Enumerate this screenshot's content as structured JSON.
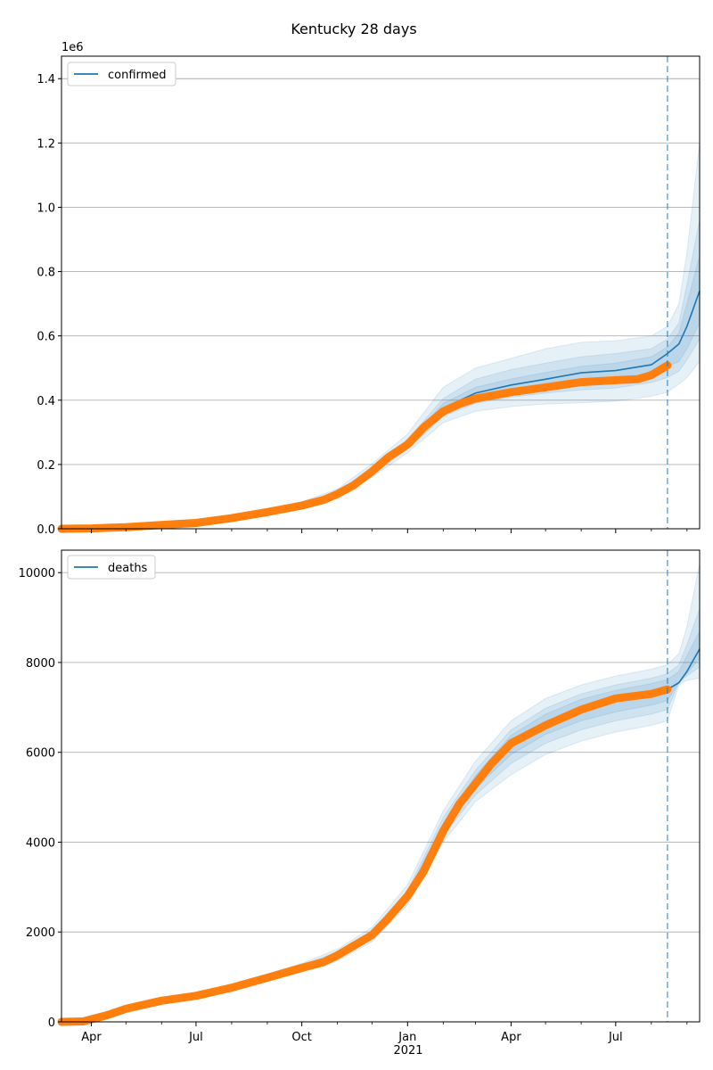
{
  "figure": {
    "title": "Kentucky 28 days",
    "x_ticks": [
      "Apr",
      "Jul",
      "Oct",
      "Jan",
      "Apr",
      "Jul"
    ],
    "x_year_label": "2021",
    "forecast_marker_date": "2021-08-15"
  },
  "colors": {
    "model": "#1f77b4",
    "observed": "#ff7f0e",
    "band": "#1f77b4",
    "grid": "#b0b0b0",
    "forecast_line": "#1f77b4"
  },
  "chart_data": [
    {
      "type": "line",
      "series_name": "confirmed",
      "legend": "confirmed",
      "y_scale_label": "1e6",
      "ylim": [
        0,
        1470000
      ],
      "xlim": [
        "2020-03-06",
        "2021-09-12"
      ],
      "y_ticks": [
        "0.0",
        "0.2",
        "0.4",
        "0.6",
        "0.8",
        "1.0",
        "1.2",
        "1.4"
      ],
      "y_tick_values": [
        0,
        200000,
        400000,
        600000,
        800000,
        1000000,
        1200000,
        1400000
      ],
      "legend_position": "top-left",
      "grid": "horizontal",
      "observed": {
        "x": [
          "2020-03-06",
          "2020-04-01",
          "2020-05-01",
          "2020-06-01",
          "2020-07-01",
          "2020-08-01",
          "2020-09-01",
          "2020-10-01",
          "2020-10-20",
          "2020-11-01",
          "2020-11-15",
          "2020-12-01",
          "2020-12-15",
          "2021-01-01",
          "2021-01-15",
          "2021-02-01",
          "2021-02-15",
          "2021-03-01",
          "2021-04-01",
          "2021-05-01",
          "2021-06-01",
          "2021-07-01",
          "2021-07-20",
          "2021-08-01",
          "2021-08-15"
        ],
        "y": [
          0,
          1000,
          5000,
          12000,
          18000,
          33000,
          52000,
          72000,
          90000,
          108000,
          135000,
          178000,
          222000,
          262000,
          315000,
          365000,
          388000,
          405000,
          425000,
          440000,
          456000,
          462000,
          465000,
          478000,
          508000
        ]
      },
      "model": {
        "x": [
          "2020-03-06",
          "2020-05-01",
          "2020-07-01",
          "2020-09-01",
          "2020-10-01",
          "2020-11-01",
          "2020-12-01",
          "2021-01-01",
          "2021-02-01",
          "2021-03-01",
          "2021-04-01",
          "2021-05-01",
          "2021-06-01",
          "2021-07-01",
          "2021-08-01",
          "2021-08-15",
          "2021-08-25",
          "2021-09-01",
          "2021-09-12"
        ],
        "y": [
          0,
          5000,
          18000,
          52000,
          72000,
          108000,
          178000,
          262000,
          375000,
          422000,
          447000,
          465000,
          485000,
          492000,
          510000,
          545000,
          575000,
          630000,
          740000
        ]
      },
      "bands": [
        {
          "lower": [
            0,
            4000,
            16000,
            46000,
            64000,
            96000,
            160000,
            236000,
            330000,
            365000,
            380000,
            388000,
            392000,
            397000,
            412000,
            425000,
            450000,
            470000,
            520000
          ],
          "upper": [
            0,
            6500,
            20500,
            60000,
            84000,
            124000,
            202000,
            295000,
            440000,
            500000,
            530000,
            560000,
            580000,
            585000,
            600000,
            630000,
            700000,
            860000,
            1200000
          ]
        },
        {
          "lower": [
            0,
            4500,
            17000,
            49000,
            68000,
            102000,
            168000,
            248000,
            350000,
            390000,
            410000,
            422000,
            432000,
            438000,
            455000,
            470000,
            490000,
            525000,
            590000
          ],
          "upper": [
            0,
            5800,
            19200,
            55000,
            77000,
            115000,
            190000,
            278000,
            405000,
            465000,
            495000,
            515000,
            535000,
            545000,
            560000,
            590000,
            640000,
            760000,
            960000
          ]
        },
        {
          "lower": [
            0,
            4800,
            17600,
            51000,
            70000,
            105000,
            174000,
            256000,
            362000,
            405000,
            428000,
            444000,
            458000,
            466000,
            482000,
            505000,
            520000,
            560000,
            640000
          ],
          "upper": [
            0,
            5300,
            18500,
            53000,
            74000,
            111000,
            183000,
            269000,
            390000,
            440000,
            466000,
            486000,
            505000,
            515000,
            535000,
            565000,
            610000,
            700000,
            850000
          ]
        }
      ]
    },
    {
      "type": "line",
      "series_name": "deaths",
      "legend": "deaths",
      "ylim": [
        0,
        10500
      ],
      "xlim": [
        "2020-03-06",
        "2021-09-12"
      ],
      "y_ticks": [
        "0",
        "2000",
        "4000",
        "6000",
        "8000",
        "10000"
      ],
      "y_tick_values": [
        0,
        2000,
        4000,
        6000,
        8000,
        10000
      ],
      "legend_position": "top-left",
      "grid": "horizontal",
      "observed": {
        "x": [
          "2020-03-06",
          "2020-03-25",
          "2020-04-15",
          "2020-05-01",
          "2020-06-01",
          "2020-07-01",
          "2020-08-01",
          "2020-09-01",
          "2020-10-01",
          "2020-10-20",
          "2020-11-01",
          "2020-12-01",
          "2020-12-15",
          "2021-01-01",
          "2021-01-15",
          "2021-02-01",
          "2021-02-15",
          "2021-03-01",
          "2021-03-15",
          "2021-04-01",
          "2021-05-01",
          "2021-06-01",
          "2021-07-01",
          "2021-08-01",
          "2021-08-15"
        ],
        "y": [
          0,
          10,
          150,
          290,
          470,
          580,
          760,
          980,
          1200,
          1330,
          1480,
          1930,
          2300,
          2800,
          3350,
          4250,
          4850,
          5300,
          5750,
          6200,
          6600,
          6950,
          7200,
          7300,
          7400
        ]
      },
      "model": {
        "x": [
          "2020-03-06",
          "2020-04-15",
          "2020-06-01",
          "2020-08-01",
          "2020-10-01",
          "2020-11-01",
          "2020-12-01",
          "2021-01-01",
          "2021-02-01",
          "2021-03-01",
          "2021-04-01",
          "2021-05-01",
          "2021-06-01",
          "2021-07-01",
          "2021-08-01",
          "2021-08-15",
          "2021-08-25",
          "2021-09-01",
          "2021-09-12"
        ],
        "y": [
          0,
          150,
          470,
          760,
          1200,
          1480,
          1930,
          2800,
          4300,
          5350,
          6200,
          6650,
          7000,
          7200,
          7330,
          7400,
          7550,
          7800,
          8300
        ]
      },
      "bands": [
        {
          "lower": [
            0,
            140,
            440,
            710,
            1110,
            1360,
            1780,
            2600,
            4000,
            4900,
            5500,
            5950,
            6250,
            6450,
            6600,
            6700,
            7500,
            7600,
            7650
          ],
          "upper": [
            0,
            165,
            510,
            830,
            1300,
            1620,
            2100,
            3050,
            4700,
            5800,
            6700,
            7200,
            7500,
            7700,
            7850,
            7950,
            8200,
            8800,
            10200
          ]
        },
        {
          "lower": [
            0,
            145,
            455,
            735,
            1150,
            1410,
            1850,
            2700,
            4150,
            5050,
            5750,
            6200,
            6500,
            6700,
            6850,
            6950,
            7550,
            7700,
            7900
          ],
          "upper": [
            0,
            158,
            490,
            800,
            1260,
            1560,
            2020,
            2930,
            4550,
            5600,
            6500,
            6980,
            7300,
            7500,
            7650,
            7750,
            7950,
            8400,
            9200
          ]
        },
        {
          "lower": [
            0,
            147,
            462,
            745,
            1175,
            1440,
            1885,
            2750,
            4230,
            5200,
            5950,
            6400,
            6700,
            6900,
            7050,
            7150,
            7560,
            7750,
            8100
          ],
          "upper": [
            0,
            154,
            480,
            780,
            1230,
            1520,
            1980,
            2870,
            4420,
            5480,
            6380,
            6850,
            7180,
            7380,
            7530,
            7620,
            7800,
            8150,
            8700
          ]
        }
      ]
    }
  ]
}
